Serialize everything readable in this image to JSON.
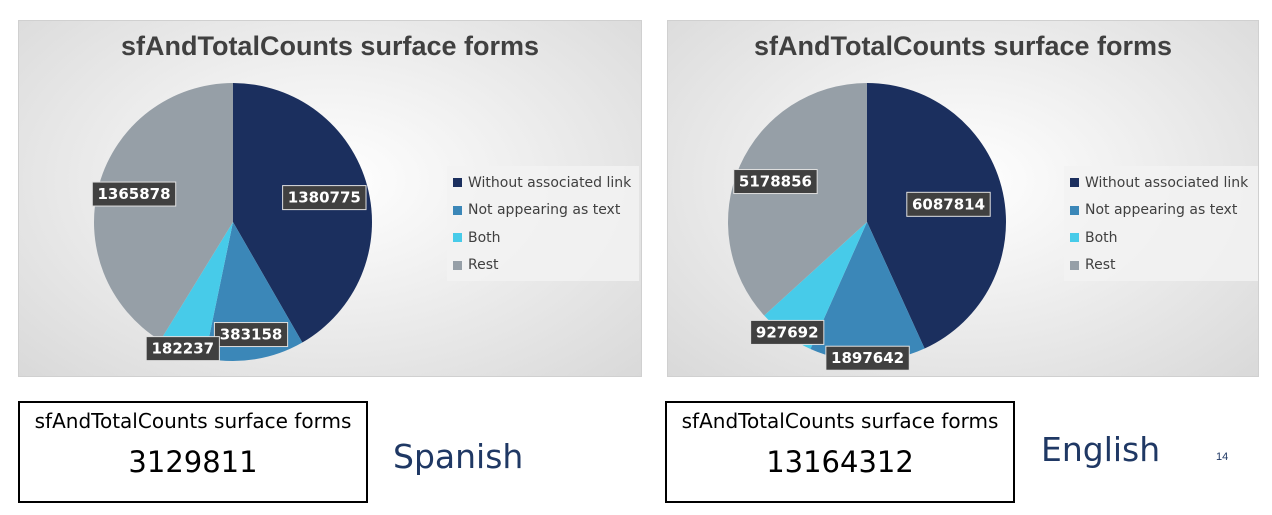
{
  "chart_data": [
    {
      "type": "pie",
      "title": "sfAndTotalCounts surface forms",
      "categories": [
        "Without associated link",
        "Not appearing as text",
        "Both",
        "Rest"
      ],
      "values": [
        1380775,
        383158,
        182237,
        1365878
      ],
      "value_labels": [
        "1380775",
        "383158",
        "182237",
        "1365878"
      ],
      "colors": [
        "#1b2f5e",
        "#3b87b8",
        "#47cbe9",
        "#969fa7"
      ],
      "legend_position": "right"
    },
    {
      "type": "pie",
      "title": "sfAndTotalCounts surface forms",
      "categories": [
        "Without associated link",
        "Not appearing as text",
        "Both",
        "Rest"
      ],
      "values": [
        6087814,
        1897642,
        927692,
        5178856
      ],
      "value_labels": [
        "6087814",
        "1897642",
        "927692",
        "5178856"
      ],
      "colors": [
        "#1b2f5e",
        "#3b87b8",
        "#47cbe9",
        "#969fa7"
      ],
      "legend_position": "right"
    }
  ],
  "totals": {
    "spanish": {
      "title": "sfAndTotalCounts surface forms",
      "value": "3129811",
      "language": "Spanish"
    },
    "english": {
      "title": "sfAndTotalCounts surface forms",
      "value": "13164312",
      "language": "English"
    }
  },
  "page_number": "14"
}
